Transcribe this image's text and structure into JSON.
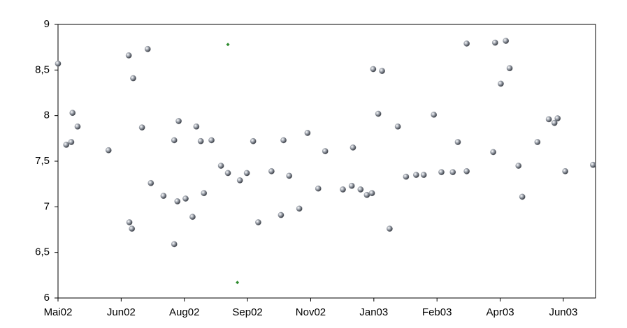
{
  "chart_data": {
    "type": "scatter",
    "xlim": [
      0,
      8.51
    ],
    "xticks": [
      {
        "value": 0,
        "label": "Mai02"
      },
      {
        "value": 1,
        "label": "Jun02"
      },
      {
        "value": 2,
        "label": "Aug02"
      },
      {
        "value": 3,
        "label": "Sep02"
      },
      {
        "value": 4,
        "label": "Nov02"
      },
      {
        "value": 5,
        "label": "Jan03"
      },
      {
        "value": 6,
        "label": "Feb03"
      },
      {
        "value": 7,
        "label": "Apr03"
      },
      {
        "value": 8,
        "label": "Jun03"
      }
    ],
    "ylim": [
      6,
      9
    ],
    "yticks": [
      6,
      {
        "value": 6.5,
        "label": "6,5"
      },
      7,
      {
        "value": 7.5,
        "label": "7,5"
      },
      8,
      {
        "value": 8.5,
        "label": "8,5"
      },
      9
    ],
    "grid": false,
    "series": [
      {
        "color": "#8a8f99",
        "marker": "sphere",
        "x": [
          0,
          0.13,
          0.21,
          0.23,
          0.31,
          0.8,
          1.12,
          1.19,
          1.13,
          1.17,
          1.33,
          1.42,
          1.47,
          1.67,
          1.84,
          1.91,
          1.84,
          1.89,
          2.02,
          2.13,
          2.19,
          2.26,
          2.31,
          2.43,
          2.58,
          2.69,
          2.88,
          2.99,
          3.09,
          3.17,
          3.38,
          3.53,
          3.57,
          3.66,
          3.82,
          3.95,
          4.12,
          4.23,
          4.51,
          4.65,
          4.67,
          4.79,
          4.89,
          4.97,
          4.99,
          5.07,
          5.13,
          5.25,
          5.38,
          5.51,
          5.67,
          5.79,
          5.95,
          6.07,
          6.25,
          6.33,
          6.47,
          6.47,
          6.89,
          6.92,
          7.01,
          7.09,
          7.15,
          7.29,
          7.35,
          7.59,
          7.77,
          7.86,
          7.91,
          8.03,
          8.47
        ],
        "values": [
          8.57,
          7.68,
          7.71,
          8.03,
          7.88,
          7.62,
          8.66,
          8.41,
          6.83,
          6.76,
          7.87,
          8.73,
          7.26,
          7.12,
          7.73,
          7.94,
          6.59,
          7.06,
          7.09,
          6.89,
          7.88,
          7.72,
          7.15,
          7.73,
          7.45,
          7.37,
          7.29,
          7.37,
          7.72,
          6.83,
          7.39,
          6.91,
          7.73,
          7.34,
          6.98,
          7.81,
          7.2,
          7.61,
          7.19,
          7.23,
          7.65,
          7.19,
          7.13,
          7.15,
          8.51,
          8.02,
          8.49,
          6.76,
          7.88,
          7.33,
          7.35,
          7.35,
          8.01,
          7.38,
          7.38,
          7.71,
          7.39,
          8.79,
          7.6,
          8.8,
          8.35,
          8.82,
          8.52,
          7.45,
          7.11,
          7.71,
          7.96,
          7.92,
          7.97,
          7.39,
          7.46
        ]
      },
      {
        "color": "#2e8b2e",
        "marker": "diamond",
        "x": [
          2.69,
          2.84
        ],
        "values": [
          8.78,
          6.17
        ]
      }
    ]
  }
}
